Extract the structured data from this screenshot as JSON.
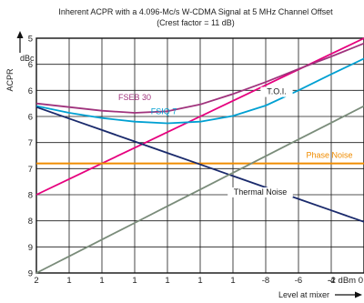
{
  "chart_data": {
    "type": "line",
    "title": "Inherent ACPR with a 4.096-Mc/s W-CDMA Signal at 5 MHz Channel Offset",
    "subtitle": "(Crest factor = 11 dB)",
    "ylabel": "ACPR",
    "yunit": "dBc",
    "xlabel": "Level at mixer",
    "x_tick_labels": [
      "2",
      "1",
      "1",
      "1",
      "1",
      "1",
      "1",
      "-8",
      "-6",
      "-4",
      "-2 dBm 0"
    ],
    "y_tick_labels": [
      "5",
      "6",
      "6",
      "6",
      "7",
      "7",
      "8",
      "8",
      "9",
      "9"
    ],
    "x": [
      -20,
      -18,
      -16,
      -14,
      -12,
      -10,
      -8,
      -6,
      -4,
      -2,
      0
    ],
    "ylim": [
      -100,
      -55
    ],
    "grid": true,
    "series": [
      {
        "name": "T.O.I.",
        "color": "#e6007e",
        "values": [
          -85,
          -82,
          -79,
          -76,
          -73,
          -70,
          -67,
          -64,
          -61,
          -58,
          -55
        ]
      },
      {
        "name": "FSEB 30",
        "color": "#a0337d",
        "values": [
          -67.5,
          -68.2,
          -68.9,
          -69.3,
          -69.0,
          -67.7,
          -65.7,
          -63.4,
          -60.9,
          -58.5,
          -56.0
        ]
      },
      {
        "name": "FSIQ 7",
        "color": "#00a0d2",
        "values": [
          -68.0,
          -69.3,
          -70.3,
          -71.0,
          -71.3,
          -71.0,
          -69.9,
          -67.9,
          -65.0,
          -61.9,
          -58.9
        ]
      },
      {
        "name": "Phase Noise",
        "color": "#f08c00",
        "values": [
          -79,
          -79,
          -79,
          -79,
          -79,
          -79,
          -79,
          -79,
          -79,
          -79,
          -79
        ]
      },
      {
        "name": "Thermal Noise",
        "color": "#1a2a6c",
        "values": [
          -68.2,
          -70.4,
          -72.6,
          -74.8,
          -77.0,
          -79.2,
          -81.4,
          -83.6,
          -85.8,
          -88.0,
          -90.2
        ]
      },
      {
        "name": "",
        "color": "#7a8c7a",
        "values": [
          -100,
          -96.8,
          -93.6,
          -90.4,
          -87.2,
          -84.0,
          -80.8,
          -77.6,
          -74.4,
          -71.2,
          -68.0
        ]
      }
    ]
  }
}
